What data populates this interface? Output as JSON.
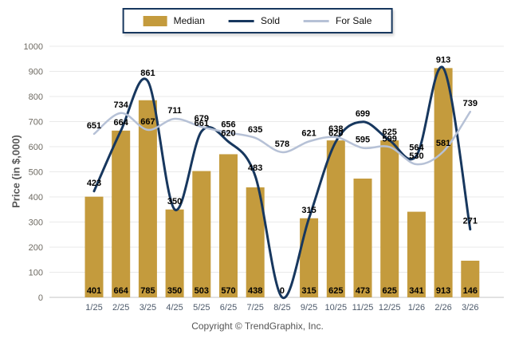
{
  "footer": {
    "copyright": "Copyright © TrendGraphix, Inc."
  },
  "chart_data": {
    "type": "bar+line",
    "title": "",
    "ylabel": "Price (in $,000)",
    "xlabel": "",
    "ylim": [
      0,
      1000
    ],
    "yticks": [
      0,
      100,
      200,
      300,
      400,
      500,
      600,
      700,
      800,
      900,
      1000
    ],
    "grid": true,
    "legend_position": "top",
    "categories": [
      "1/25",
      "2/25",
      "3/25",
      "4/25",
      "5/25",
      "6/25",
      "7/25",
      "8/25",
      "9/25",
      "10/25",
      "11/25",
      "12/25",
      "1/26",
      "2/26",
      "3/26"
    ],
    "series": [
      {
        "name": "Median",
        "type": "bar",
        "color": "#C49B3D",
        "label_position": "base",
        "values": [
          401,
          664,
          785,
          350,
          503,
          570,
          438,
          0,
          315,
          625,
          473,
          625,
          341,
          913,
          146
        ]
      },
      {
        "name": "Sold",
        "type": "line",
        "color": "#17375E",
        "stroke_width": 3,
        "label_position": "above",
        "values": [
          423,
          664,
          861,
          350,
          661,
          620,
          483,
          0,
          315,
          620,
          699,
          625,
          564,
          913,
          271
        ]
      },
      {
        "name": "For Sale",
        "type": "line",
        "color": "#B6C1D6",
        "stroke_width": 2.5,
        "label_position": "above",
        "values": [
          651,
          734,
          667,
          711,
          679,
          656,
          635,
          578,
          621,
          638,
          595,
          599,
          530,
          581,
          739
        ]
      }
    ]
  }
}
